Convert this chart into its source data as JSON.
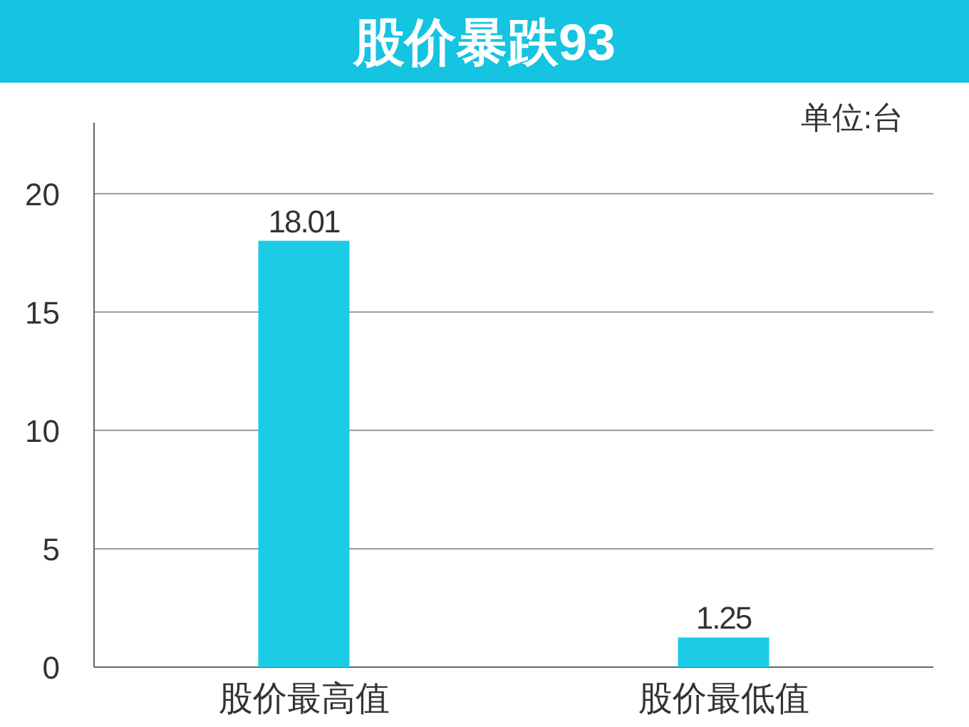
{
  "chart_data": {
    "type": "bar",
    "title": "股价暴跌93",
    "annotations": [
      "单位:台"
    ],
    "categories": [
      "股价最高值",
      "股价最低值"
    ],
    "values": [
      18.01,
      1.25
    ],
    "color": "#1ccbe6",
    "data_labels": true,
    "ylim": [
      0,
      23
    ],
    "yticks": [
      0,
      5,
      10,
      15,
      20
    ],
    "grid": "y"
  }
}
